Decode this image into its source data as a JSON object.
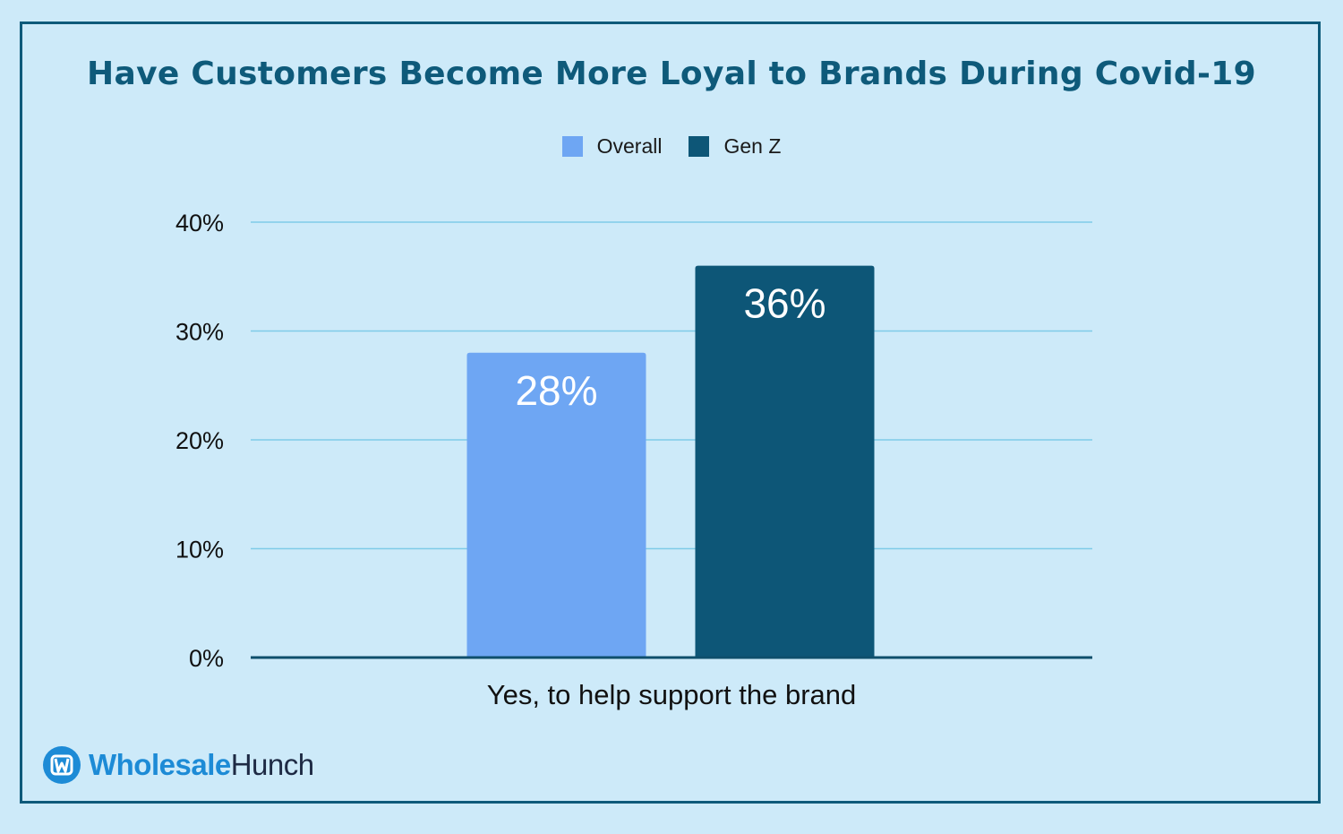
{
  "colors": {
    "background": "#cdeaf9",
    "title": "#0e5a7a",
    "grid": "#7fcbe8",
    "axis": "#0e4f6c",
    "overall": "#6ea6f3",
    "genz": "#0d5677",
    "brand_blue": "#1d8bd6",
    "brand_dark": "#1e2a44"
  },
  "chart_data": {
    "type": "bar",
    "title": "Have Customers Become More Loyal to Brands During Covid-19",
    "categories": [
      "Yes, to help support the brand"
    ],
    "series": [
      {
        "name": "Overall",
        "values": [
          28
        ],
        "label": "28%",
        "color": "#6ea6f3"
      },
      {
        "name": "Gen Z",
        "values": [
          36
        ],
        "label": "36%",
        "color": "#0d5677"
      }
    ],
    "ylim": [
      0,
      40
    ],
    "yticks": [
      "0%",
      "10%",
      "20%",
      "30%",
      "40%"
    ],
    "ytick_values": [
      0,
      10,
      20,
      30,
      40
    ],
    "grid": true,
    "legend_position": "top-center"
  },
  "logo": {
    "icon": "wholesale-hunch-logo-icon",
    "word1": "Wholesale",
    "word2": "Hunch"
  }
}
